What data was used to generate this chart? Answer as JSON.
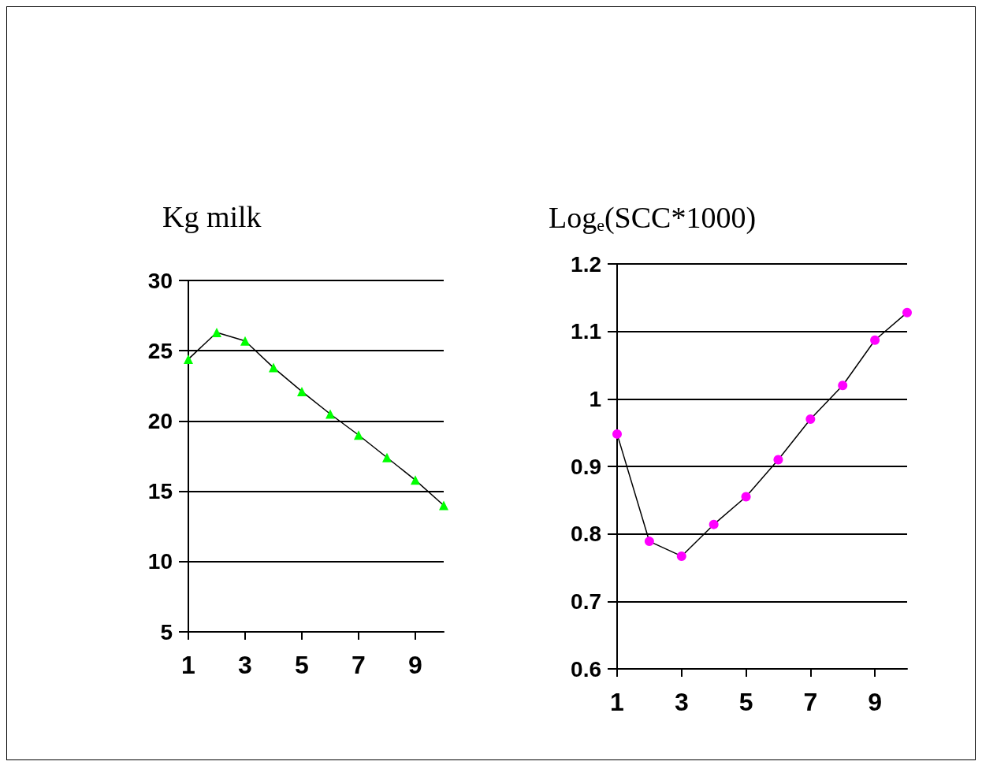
{
  "chart_data": [
    {
      "type": "line",
      "title": "Kg milk",
      "x": [
        1,
        2,
        3,
        4,
        5,
        6,
        7,
        8,
        9,
        10
      ],
      "xlim": [
        1,
        10
      ],
      "xticks": [
        1,
        3,
        5,
        7,
        9
      ],
      "ylim": [
        5,
        30
      ],
      "yticks": [
        5,
        10,
        15,
        20,
        25,
        30
      ],
      "grid": "y",
      "marker": "triangle",
      "series": [
        {
          "color": "#00ff00",
          "values": [
            24.4,
            26.3,
            25.7,
            23.8,
            22.1,
            20.5,
            19.0,
            17.4,
            15.8,
            14.0
          ]
        }
      ]
    },
    {
      "type": "line",
      "title": "Log$_{e}$(SCC*1000)",
      "x": [
        1,
        2,
        3,
        4,
        5,
        6,
        7,
        8,
        9,
        10
      ],
      "xlim": [
        1,
        10
      ],
      "xticks": [
        1,
        3,
        5,
        7,
        9
      ],
      "ylim": [
        0.6,
        1.2
      ],
      "yticks": [
        0.6,
        0.7,
        0.8,
        0.9,
        1,
        1.1,
        1.2
      ],
      "grid": "y",
      "marker": "circle",
      "series": [
        {
          "color": "#ff00ff",
          "values": [
            0.948,
            0.789,
            0.767,
            0.814,
            0.855,
            0.91,
            0.97,
            1.02,
            1.087,
            1.128
          ]
        }
      ]
    }
  ]
}
